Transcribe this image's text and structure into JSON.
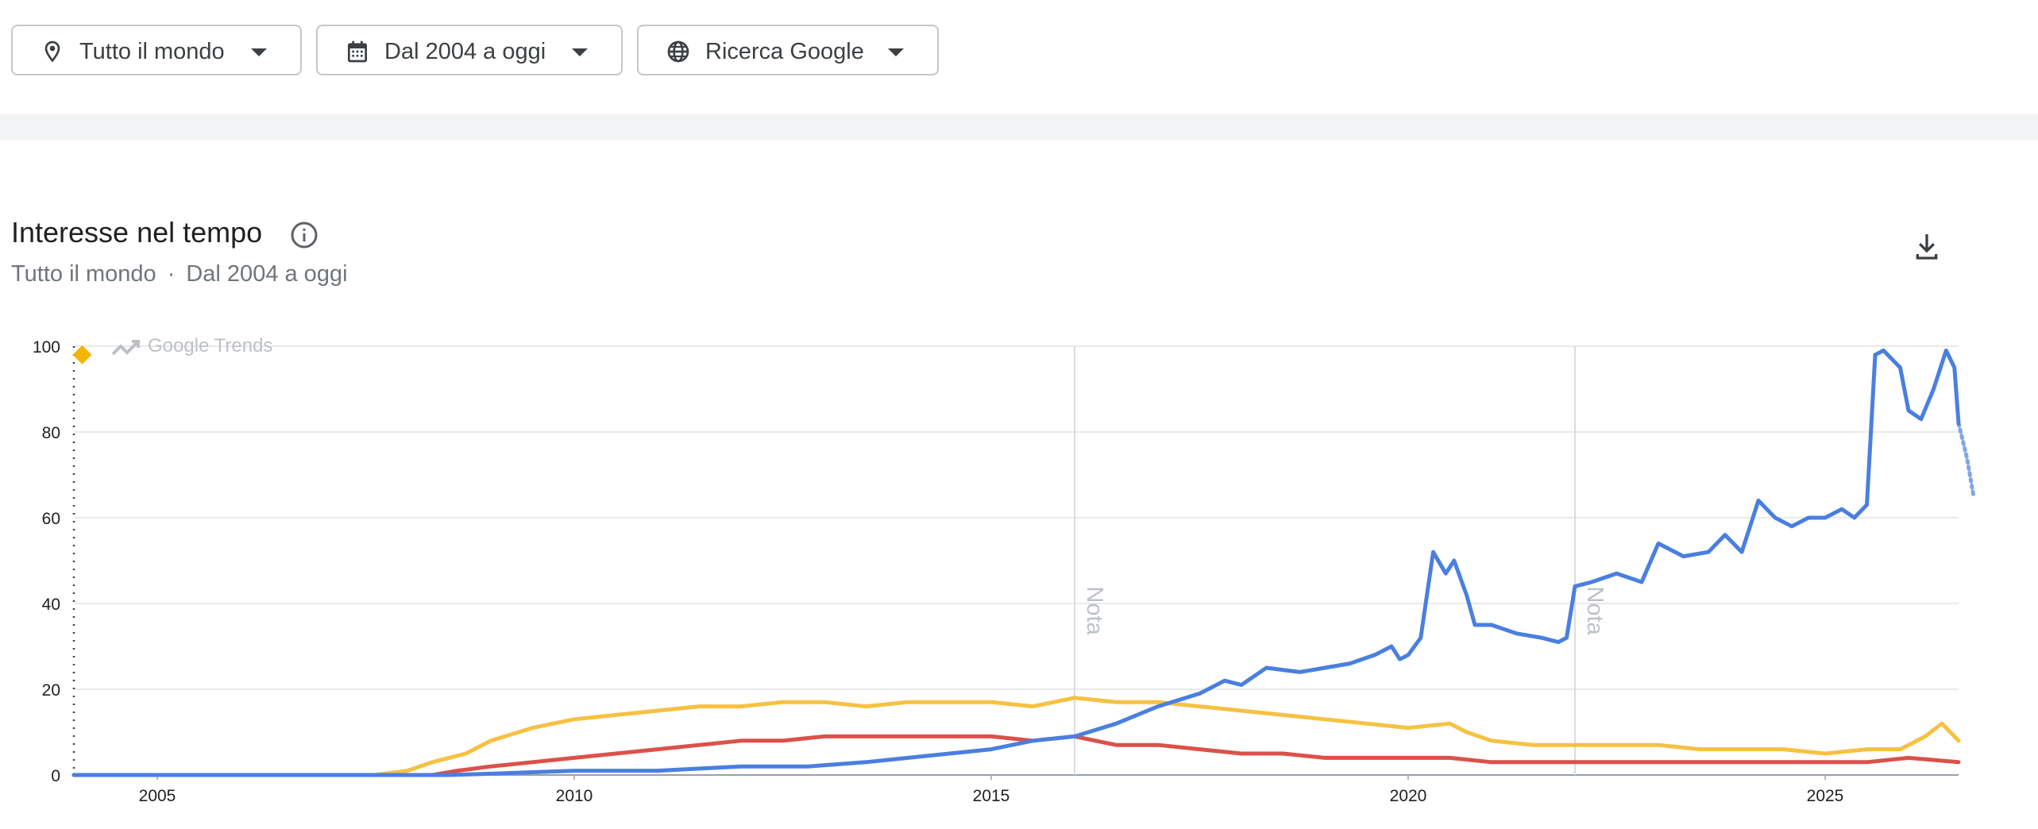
{
  "filters": {
    "location": {
      "label": "Tutto il mondo",
      "icon": "location-pin-icon"
    },
    "time": {
      "label": "Dal 2004 a oggi",
      "icon": "calendar-icon"
    },
    "property": {
      "label": "Ricerca Google",
      "icon": "globe-icon"
    }
  },
  "section": {
    "title": "Interesse nel tempo",
    "subtitle_location": "Tutto il mondo",
    "subtitle_separator": "·",
    "subtitle_time": "Dal 2004 a oggi"
  },
  "chart_data": {
    "type": "line",
    "watermark": "Google Trends",
    "xlim": [
      2004.0,
      2026.6
    ],
    "ylim": [
      0,
      100
    ],
    "x_ticks": [
      {
        "value": 2005,
        "label": "2005"
      },
      {
        "value": 2010,
        "label": "2010"
      },
      {
        "value": 2015,
        "label": "2015"
      },
      {
        "value": 2020,
        "label": "2020"
      },
      {
        "value": 2025,
        "label": "2025"
      }
    ],
    "y_ticks": [
      0,
      20,
      40,
      60,
      80,
      100
    ],
    "grid": true,
    "annotations": [
      {
        "x": 2016.0,
        "label": "Nota"
      },
      {
        "x": 2022.0,
        "label": "Nota"
      }
    ],
    "series": [
      {
        "color": "#4a7fe0",
        "points": [
          [
            2004.0,
            0
          ],
          [
            2008.5,
            0
          ],
          [
            2009.0,
            0.3
          ],
          [
            2010.0,
            1
          ],
          [
            2011.0,
            1
          ],
          [
            2012.0,
            2
          ],
          [
            2012.8,
            2
          ],
          [
            2013.5,
            3
          ],
          [
            2014.0,
            4
          ],
          [
            2014.5,
            5
          ],
          [
            2015.0,
            6
          ],
          [
            2015.5,
            8
          ],
          [
            2016.0,
            9
          ],
          [
            2016.5,
            12
          ],
          [
            2017.0,
            16
          ],
          [
            2017.5,
            19
          ],
          [
            2017.8,
            22
          ],
          [
            2018.0,
            21
          ],
          [
            2018.3,
            25
          ],
          [
            2018.7,
            24
          ],
          [
            2019.0,
            25
          ],
          [
            2019.3,
            26
          ],
          [
            2019.6,
            28
          ],
          [
            2019.8,
            30
          ],
          [
            2019.9,
            27
          ],
          [
            2020.0,
            28
          ],
          [
            2020.15,
            32
          ],
          [
            2020.3,
            52
          ],
          [
            2020.45,
            47
          ],
          [
            2020.55,
            50
          ],
          [
            2020.7,
            42
          ],
          [
            2020.8,
            35
          ],
          [
            2021.0,
            35
          ],
          [
            2021.3,
            33
          ],
          [
            2021.6,
            32
          ],
          [
            2021.8,
            31
          ],
          [
            2021.9,
            32
          ],
          [
            2022.0,
            44
          ],
          [
            2022.2,
            45
          ],
          [
            2022.5,
            47
          ],
          [
            2022.8,
            45
          ],
          [
            2023.0,
            54
          ],
          [
            2023.3,
            51
          ],
          [
            2023.6,
            52
          ],
          [
            2023.8,
            56
          ],
          [
            2024.0,
            52
          ],
          [
            2024.2,
            64
          ],
          [
            2024.4,
            60
          ],
          [
            2024.6,
            58
          ],
          [
            2024.8,
            60
          ],
          [
            2025.0,
            60
          ],
          [
            2025.2,
            62
          ],
          [
            2025.35,
            60
          ],
          [
            2025.5,
            63
          ],
          [
            2025.6,
            98
          ],
          [
            2025.7,
            99
          ],
          [
            2025.9,
            95
          ],
          [
            2026.0,
            85
          ],
          [
            2026.15,
            83
          ],
          [
            2026.3,
            90
          ],
          [
            2026.45,
            99
          ],
          [
            2026.55,
            95
          ],
          [
            2026.6,
            82
          ]
        ],
        "partial_tail": [
          [
            2026.6,
            82
          ],
          [
            2026.7,
            74
          ],
          [
            2026.78,
            65
          ]
        ]
      },
      {
        "color": "#f6c143",
        "points": [
          [
            2004.0,
            0
          ],
          [
            2007.6,
            0
          ],
          [
            2008.0,
            1
          ],
          [
            2008.3,
            3
          ],
          [
            2008.7,
            5
          ],
          [
            2009.0,
            8
          ],
          [
            2009.5,
            11
          ],
          [
            2010.0,
            13
          ],
          [
            2010.5,
            14
          ],
          [
            2011.0,
            15
          ],
          [
            2011.5,
            16
          ],
          [
            2012.0,
            16
          ],
          [
            2012.5,
            17
          ],
          [
            2013.0,
            17
          ],
          [
            2013.5,
            16
          ],
          [
            2014.0,
            17
          ],
          [
            2014.5,
            17
          ],
          [
            2015.0,
            17
          ],
          [
            2015.5,
            16
          ],
          [
            2016.0,
            18
          ],
          [
            2016.5,
            17
          ],
          [
            2017.0,
            17
          ],
          [
            2017.5,
            16
          ],
          [
            2018.0,
            15
          ],
          [
            2018.5,
            14
          ],
          [
            2019.0,
            13
          ],
          [
            2019.5,
            12
          ],
          [
            2020.0,
            11
          ],
          [
            2020.5,
            12
          ],
          [
            2020.7,
            10
          ],
          [
            2021.0,
            8
          ],
          [
            2021.5,
            7
          ],
          [
            2022.0,
            7
          ],
          [
            2022.5,
            7
          ],
          [
            2023.0,
            7
          ],
          [
            2023.5,
            6
          ],
          [
            2024.0,
            6
          ],
          [
            2024.5,
            6
          ],
          [
            2025.0,
            5
          ],
          [
            2025.5,
            6
          ],
          [
            2025.9,
            6
          ],
          [
            2026.2,
            9
          ],
          [
            2026.4,
            12
          ],
          [
            2026.6,
            8
          ]
        ]
      },
      {
        "color": "#db5149",
        "points": [
          [
            2004.0,
            0
          ],
          [
            2008.3,
            0
          ],
          [
            2008.6,
            1
          ],
          [
            2009.0,
            2
          ],
          [
            2009.5,
            3
          ],
          [
            2010.0,
            4
          ],
          [
            2010.5,
            5
          ],
          [
            2011.0,
            6
          ],
          [
            2011.5,
            7
          ],
          [
            2012.0,
            8
          ],
          [
            2012.5,
            8
          ],
          [
            2013.0,
            9
          ],
          [
            2013.5,
            9
          ],
          [
            2014.0,
            9
          ],
          [
            2014.5,
            9
          ],
          [
            2015.0,
            9
          ],
          [
            2015.5,
            8
          ],
          [
            2016.0,
            9
          ],
          [
            2016.5,
            7
          ],
          [
            2017.0,
            7
          ],
          [
            2017.5,
            6
          ],
          [
            2018.0,
            5
          ],
          [
            2018.5,
            5
          ],
          [
            2019.0,
            4
          ],
          [
            2019.5,
            4
          ],
          [
            2020.0,
            4
          ],
          [
            2020.5,
            4
          ],
          [
            2021.0,
            3
          ],
          [
            2021.5,
            3
          ],
          [
            2022.0,
            3
          ],
          [
            2022.5,
            3
          ],
          [
            2023.0,
            3
          ],
          [
            2023.5,
            3
          ],
          [
            2024.0,
            3
          ],
          [
            2024.5,
            3
          ],
          [
            2025.0,
            3
          ],
          [
            2025.5,
            3
          ],
          [
            2026.0,
            4
          ],
          [
            2026.6,
            3
          ]
        ]
      }
    ],
    "marker": {
      "x": 2004.1,
      "y": 98,
      "color": "#f4b400"
    }
  }
}
